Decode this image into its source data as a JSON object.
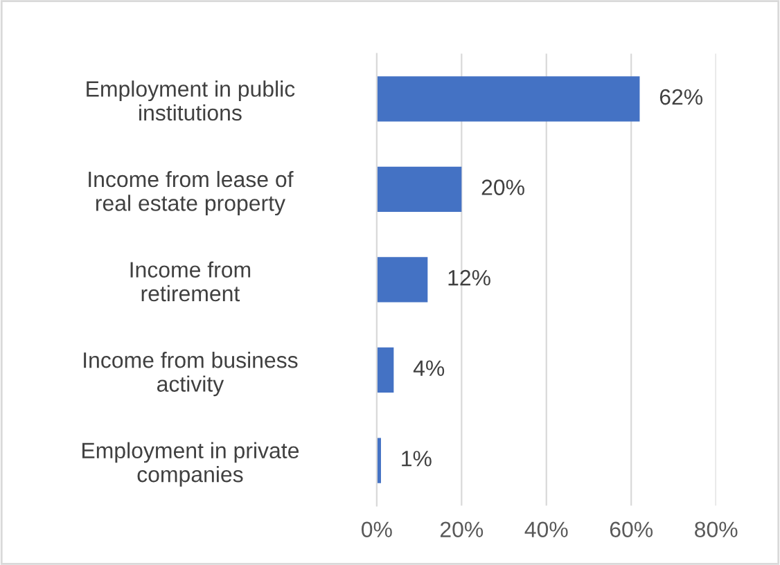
{
  "chart_data": {
    "type": "bar",
    "orientation": "horizontal",
    "categories": [
      "Employment in public\ninstitutions",
      "Income from lease of\nreal estate property",
      "Income from\nretirement",
      "Income from business\nactivity",
      "Employment in private\ncompanies"
    ],
    "values": [
      62,
      20,
      12,
      4,
      1
    ],
    "value_labels": [
      "62%",
      "20%",
      "12%",
      "4%",
      "1%"
    ],
    "color": "#4472c4",
    "xlim": [
      0,
      80
    ],
    "xticks": [
      {
        "value": 0,
        "label": "0%"
      },
      {
        "value": 20,
        "label": "20%"
      },
      {
        "value": 40,
        "label": "40%"
      },
      {
        "value": 60,
        "label": "60%"
      },
      {
        "value": 80,
        "label": "80%"
      }
    ],
    "grid": "x"
  }
}
